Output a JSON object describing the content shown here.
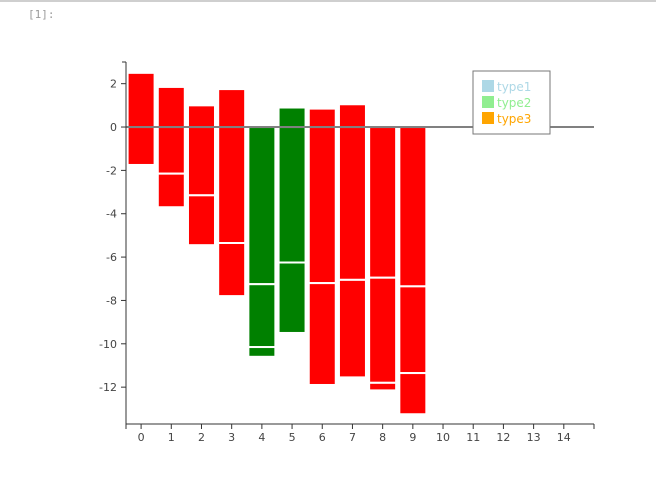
{
  "cell": {
    "prompt": "[1]:"
  },
  "colors": {
    "red": "#ff0000",
    "green": "#008000",
    "type1": "#add8e6",
    "type2": "#90ee90",
    "type3": "#ffa500"
  },
  "chart_data": {
    "type": "bar",
    "stacked": true,
    "title": "",
    "xlabel": "",
    "ylabel": "",
    "xlim": [
      -0.5,
      15
    ],
    "ylim": [
      -13.7,
      3
    ],
    "xticks": [
      0,
      1,
      2,
      3,
      4,
      5,
      6,
      7,
      8,
      9,
      10,
      11,
      12,
      13,
      14
    ],
    "yticks": [
      2,
      0,
      -2,
      -4,
      -6,
      -8,
      -10,
      -12
    ],
    "zero_line": true,
    "legend": {
      "position": "top-right",
      "entries": [
        "type1",
        "type2",
        "type3"
      ]
    },
    "bars": [
      {
        "x": 0,
        "color": "red",
        "segments": [
          [
            0,
            2.5
          ],
          [
            0,
            -1.75
          ]
        ]
      },
      {
        "x": 1,
        "color": "red",
        "segments": [
          [
            0,
            1.85
          ],
          [
            0,
            -2.15
          ],
          [
            -2.15,
            -3.7
          ]
        ]
      },
      {
        "x": 2,
        "color": "red",
        "segments": [
          [
            0,
            1.0
          ],
          [
            0,
            -3.15
          ],
          [
            -3.15,
            -5.45
          ]
        ]
      },
      {
        "x": 3,
        "color": "red",
        "segments": [
          [
            0,
            1.75
          ],
          [
            0,
            -5.35
          ],
          [
            -5.35,
            -7.8
          ]
        ]
      },
      {
        "x": 4,
        "color": "green",
        "segments": [
          [
            0,
            -7.25
          ],
          [
            -7.25,
            -10.15
          ],
          [
            -10.15,
            -10.6
          ]
        ]
      },
      {
        "x": 5,
        "color": "green",
        "segments": [
          [
            0,
            0.9
          ],
          [
            0,
            -6.25
          ],
          [
            -6.25,
            -9.5
          ]
        ]
      },
      {
        "x": 6,
        "color": "red",
        "segments": [
          [
            0,
            0.85
          ],
          [
            0,
            -7.2
          ],
          [
            -7.2,
            -11.9
          ]
        ]
      },
      {
        "x": 7,
        "color": "red",
        "segments": [
          [
            0,
            1.05
          ],
          [
            0,
            -7.05
          ],
          [
            -7.05,
            -11.55
          ]
        ]
      },
      {
        "x": 8,
        "color": "red",
        "segments": [
          [
            0,
            -6.95
          ],
          [
            -6.95,
            -11.8
          ],
          [
            -11.8,
            -12.15
          ]
        ]
      },
      {
        "x": 9,
        "color": "red",
        "segments": [
          [
            0,
            -7.35
          ],
          [
            -7.35,
            -11.35
          ],
          [
            -11.35,
            -13.25
          ]
        ]
      }
    ]
  }
}
